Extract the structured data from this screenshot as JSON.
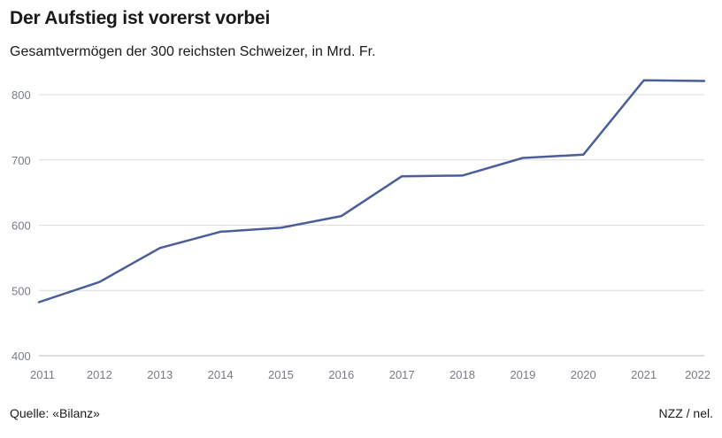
{
  "chart_data": {
    "type": "line",
    "title": "Der Aufstieg ist vorerst vorbei",
    "subtitle": "Gesamtvermögen der 300 reichsten Schweizer, in Mrd. Fr.",
    "x": [
      "2011",
      "2012",
      "2013",
      "2014",
      "2015",
      "2016",
      "2017",
      "2018",
      "2019",
      "2020",
      "2021",
      "2022"
    ],
    "series": [
      {
        "values": [
          482,
          513,
          565,
          590,
          596,
          614,
          675,
          676,
          703,
          708,
          822,
          821
        ],
        "color": "#4a5e9a"
      }
    ],
    "y_ticks": [
      400,
      500,
      600,
      700,
      800
    ],
    "ylim": [
      400,
      822
    ],
    "grid": true,
    "legend": "none"
  },
  "footer": {
    "source": "Quelle: «Bilanz»",
    "credit": "NZZ / nel."
  }
}
